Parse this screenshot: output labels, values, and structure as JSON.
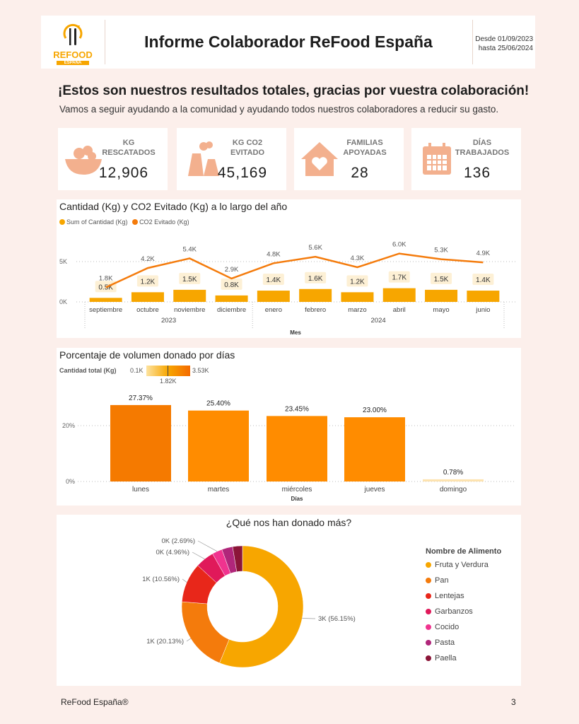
{
  "header": {
    "logo_text": "REFOOD",
    "logo_sub": "ESPAÑA",
    "title": "Informe Colaborador ReFood España",
    "date_from": "Desde 01/09/2023",
    "date_to": "hasta 25/06/2024"
  },
  "headline": "¡Estos son nuestros resultados totales, gracias por vuestra colaboración!",
  "subhead": "Vamos a seguir ayudando a la comunidad y ayudando todos nuestros colaboradores a reducir su gasto.",
  "kpis": [
    {
      "label": "KG RESCATADOS",
      "value": "12,906",
      "icon": "fruit-basket-icon"
    },
    {
      "label": "KG CO2 EVITADO",
      "value": "45,169",
      "icon": "factory-icon"
    },
    {
      "label": "FAMILIAS APOYADAS",
      "value": "28",
      "icon": "home-heart-icon"
    },
    {
      "label": "DÍAS TRABAJADOS",
      "value": "136",
      "icon": "calendar-icon"
    }
  ],
  "colors": {
    "accent": "#f7a600",
    "orange": "#f47b0c",
    "background": "#fcefeb"
  },
  "chart_data": [
    {
      "type": "bar+line",
      "title": "Cantidad (Kg) y CO2 Evitado (Kg) a lo largo del año",
      "xlabel": "Mes",
      "years": [
        {
          "label": "2023",
          "span": 4
        },
        {
          "label": "2024",
          "span": 6
        }
      ],
      "categories": [
        "septiembre",
        "octubre",
        "noviembre",
        "diciembre",
        "enero",
        "febrero",
        "marzo",
        "abril",
        "mayo",
        "junio"
      ],
      "yticks": [
        "0K",
        "5K"
      ],
      "ylim": [
        0,
        6500
      ],
      "series": [
        {
          "name": "Sum of Cantidad (Kg)",
          "type": "bar",
          "color": "#f7a600",
          "values": [
            500,
            1200,
            1500,
            800,
            1400,
            1600,
            1200,
            1700,
            1500,
            1400
          ],
          "labels": [
            "0.5K",
            "1.2K",
            "1.5K",
            "0.8K",
            "1.4K",
            "1.6K",
            "1.2K",
            "1.7K",
            "1.5K",
            "1.4K"
          ]
        },
        {
          "name": "CO2 Evitado (Kg)",
          "type": "line",
          "color": "#f47b0c",
          "values": [
            1800,
            4200,
            5400,
            2900,
            4800,
            5600,
            4300,
            6000,
            5300,
            4900
          ],
          "labels": [
            "1.8K",
            "4.2K",
            "5.4K",
            "2.9K",
            "4.8K",
            "5.6K",
            "4.3K",
            "6.0K",
            "5.3K",
            "4.9K"
          ]
        }
      ]
    },
    {
      "type": "bar",
      "title": "Porcentaje de volumen donado por días",
      "xlabel": "Días",
      "legend_title": "Cantidad total (Kg)",
      "legend_min": "0.1K",
      "legend_mid": "1.82K",
      "legend_max": "3.53K",
      "categories": [
        "lunes",
        "martes",
        "miércoles",
        "jueves",
        "domingo"
      ],
      "values": [
        27.37,
        25.4,
        23.45,
        23.0,
        0.78
      ],
      "labels": [
        "27.37%",
        "25.40%",
        "23.45%",
        "23.00%",
        "0.78%"
      ],
      "yticks": [
        "0%",
        "20%"
      ],
      "ylim": [
        0,
        30
      ]
    },
    {
      "type": "pie",
      "title": "¿Qué nos han donado más?",
      "legend_title": "Nombre de Alimento",
      "categories": [
        "Fruta y Verdura",
        "Pan",
        "Lentejas",
        "Garbanzos",
        "Cocido",
        "Pasta",
        "Paella"
      ],
      "values": [
        56.15,
        20.13,
        10.56,
        4.96,
        2.69,
        2.9,
        2.61
      ],
      "labels": [
        "3K (56.15%)",
        "1K (20.13%)",
        "1K (10.56%)",
        "0K (4.96%)",
        "0K (2.69%)",
        null,
        null
      ],
      "colors": [
        "#f7a600",
        "#f47b0c",
        "#e8271a",
        "#e0195a",
        "#f0338f",
        "#b0267a",
        "#8b1538"
      ]
    }
  ],
  "footer": {
    "brand": "ReFood España®",
    "page": "3"
  }
}
